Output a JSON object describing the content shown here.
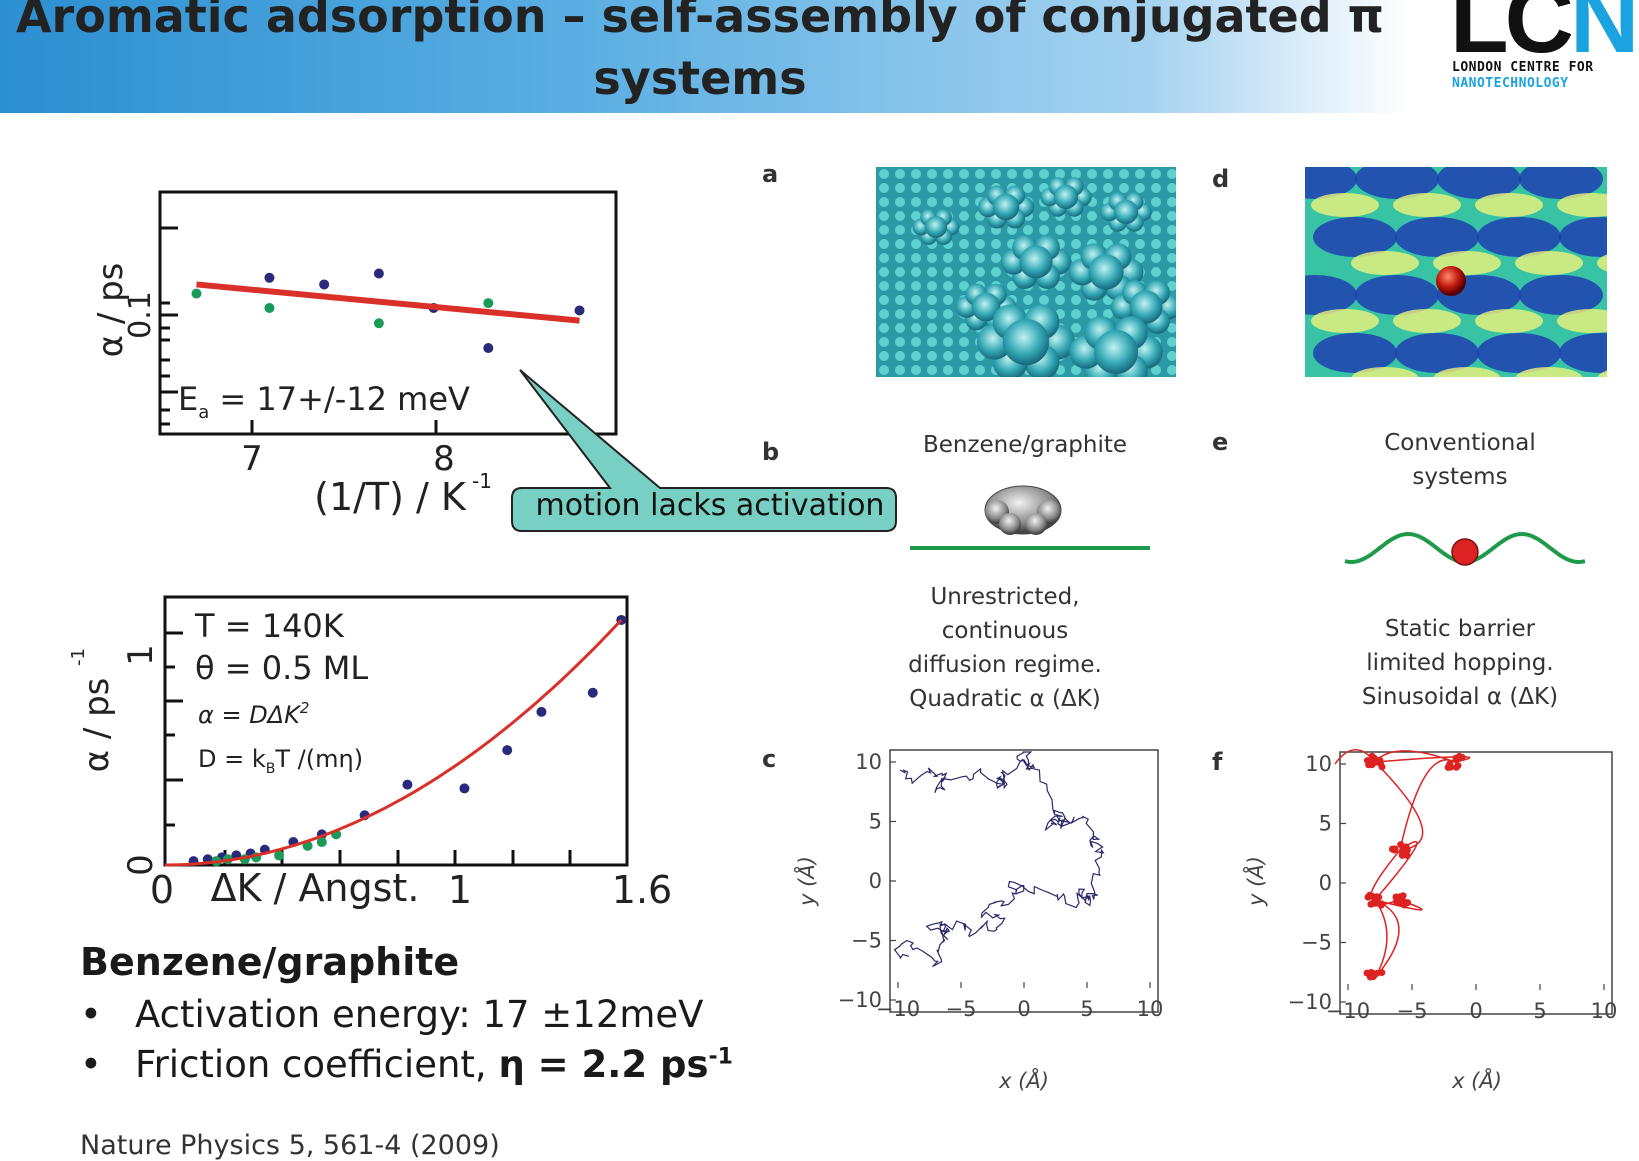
{
  "slide": {
    "title_line1": "Aromatic adsorption – self-assembly of conjugated π",
    "title_line2": "systems",
    "logo_letters": "LC",
    "logo_letter_n": "N",
    "logo_line1": "LONDON CENTRE FOR",
    "logo_line2": "NANOTECHNOLOGY"
  },
  "arrhenius_plot": {
    "ylabel": "α / ps",
    "ytick": "0.1",
    "xlabel": "(1/T) / K",
    "xlabel_sup": "-1",
    "xticks": [
      "7",
      "8"
    ],
    "annotation": "E",
    "annotation_sub": "a",
    "annotation_rest": " = 17+/-12 meV",
    "callout": "motion lacks activation",
    "colors": {
      "fit": "#d9312a",
      "series_a": "#2a2a7a",
      "series_b": "#1a9b5a"
    }
  },
  "dispersion_plot": {
    "ylabel": "α / ps",
    "ylabel_sup": "-1",
    "yticks": [
      "0",
      "1"
    ],
    "xticks": [
      "0",
      "1",
      "1.6"
    ],
    "xlabel": "ΔK / Angst.",
    "line1": "T = 140K",
    "line2": "θ = 0.5 ML",
    "line3": "α = DΔK",
    "line3_sup": "2",
    "line4": "D = k",
    "line4_sub": "B",
    "line4_rest": "T /(mη)"
  },
  "chart_data": [
    {
      "type": "scatter",
      "xlabel": "(1/T) / K-1",
      "ylabel": "α / ps",
      "ylog": true,
      "xlim": [
        6.5,
        9.0
      ],
      "ylim": [
        0.06,
        0.16
      ],
      "series": [
        {
          "name": "",
          "color": "#2a2a7a",
          "x": [
            7.1,
            7.4,
            7.7,
            8.0,
            8.3,
            8.8
          ],
          "y": [
            0.113,
            0.11,
            0.115,
            0.1,
            0.085,
            0.099
          ]
        },
        {
          "name": "",
          "color": "#1a9b5a",
          "x": [
            6.7,
            7.1,
            7.7,
            8.3
          ],
          "y": [
            0.106,
            0.1,
            0.094,
            0.102
          ]
        }
      ],
      "fit": {
        "x": [
          6.7,
          8.8
        ],
        "y": [
          0.11,
          0.095
        ]
      }
    },
    {
      "type": "scatter",
      "xlabel": "ΔK / Angst.",
      "ylabel": "α / ps-1",
      "xlim": [
        0,
        1.62
      ],
      "ylim": [
        0,
        1.4
      ],
      "series": [
        {
          "name": "",
          "color": "#2a2a7a",
          "x": [
            0.1,
            0.15,
            0.2,
            0.25,
            0.3,
            0.35,
            0.45,
            0.55,
            0.7,
            0.85,
            1.05,
            1.2,
            1.32,
            1.5,
            1.6
          ],
          "y": [
            0.02,
            0.03,
            0.04,
            0.05,
            0.06,
            0.08,
            0.12,
            0.16,
            0.26,
            0.42,
            0.4,
            0.6,
            0.8,
            0.9,
            1.28
          ]
        },
        {
          "name": "",
          "color": "#1a9b5a",
          "x": [
            0.18,
            0.22,
            0.28,
            0.32,
            0.4,
            0.5,
            0.55,
            0.6
          ],
          "y": [
            0.02,
            0.03,
            0.03,
            0.04,
            0.05,
            0.1,
            0.12,
            0.16
          ]
        }
      ],
      "fit": "quadratic"
    }
  ],
  "figure": {
    "labels": {
      "a": "a",
      "b": "b",
      "c": "c",
      "d": "d",
      "e": "e",
      "f": "f"
    },
    "b_title": "Benzene/graphite",
    "b_caption": [
      "Unrestricted,",
      "continuous",
      "diffusion regime."
    ],
    "b_caption_last": "Quadratic α (ΔK)",
    "e_title": [
      "Conventional",
      "systems"
    ],
    "e_caption": [
      "Static barrier",
      "limited hopping."
    ],
    "e_caption_last": "Sinusoidal α (ΔK)",
    "traj_ticks": [
      "10",
      "5",
      "0",
      "−5",
      "−10"
    ],
    "traj_xticks": [
      "−10",
      "−5",
      "0",
      "5",
      "10"
    ],
    "traj_xlabel": "x (Å)",
    "traj_ylabel": "y (Å)",
    "colors": {
      "molecule_blue": "#2e93a8",
      "substrate": "#4fd0c9",
      "line_green": "#1f9a4a",
      "red": "#dd2222"
    }
  },
  "summary": {
    "heading": "Benzene/graphite",
    "bullet1": "Activation energy: 17 ±12meV",
    "bullet2_pre": "Friction coefficient, ",
    "bullet2_bold": "η = 2.2 ps",
    "bullet2_sup": "-1",
    "citation": "Nature Physics 5, 561-4 (2009)"
  }
}
